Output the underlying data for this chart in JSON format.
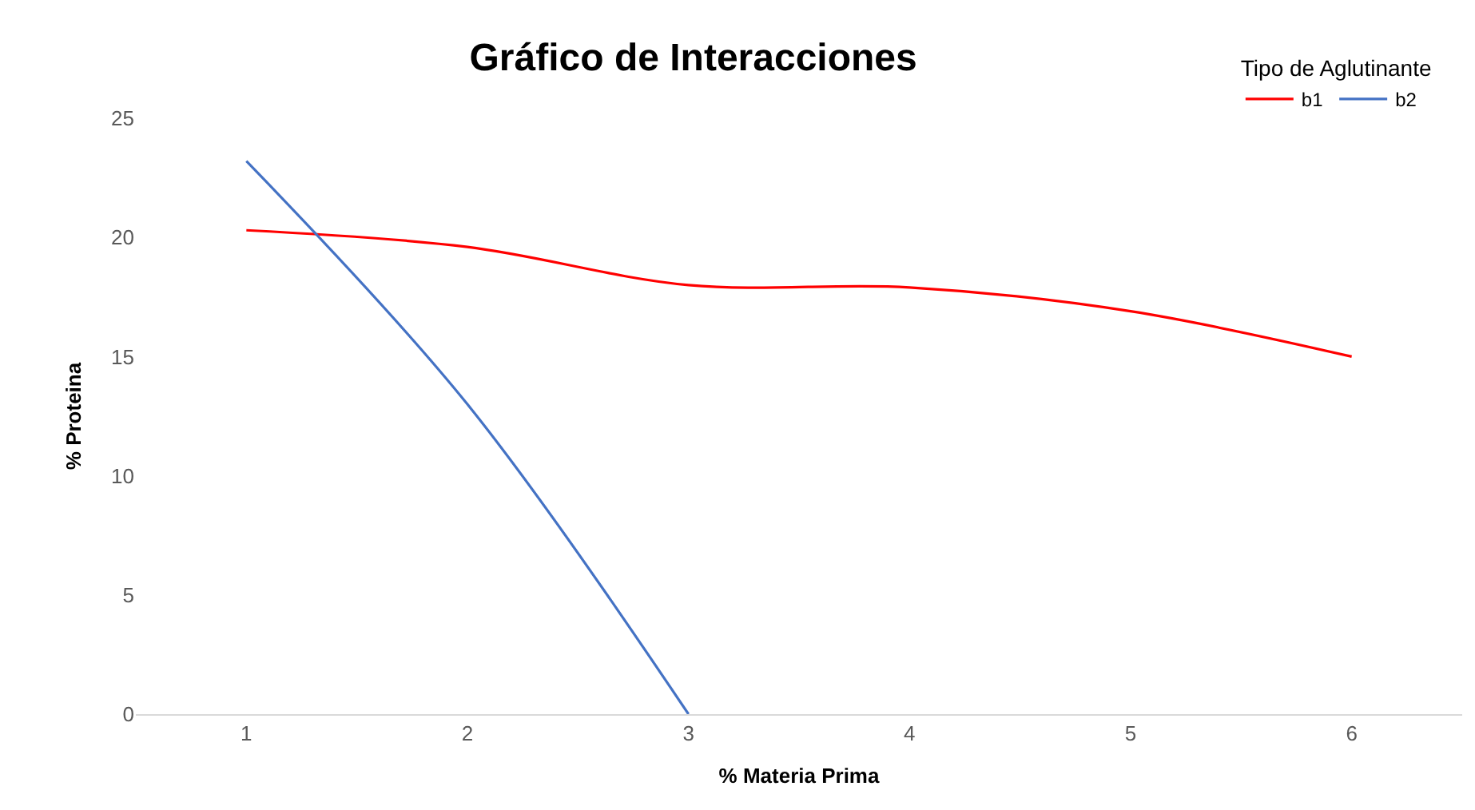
{
  "chart_data": {
    "type": "line",
    "title": "Gráfico de Interacciones",
    "xlabel": "% Materia Prima",
    "ylabel": "% Proteina",
    "legend_title": "Tipo de Aglutinante",
    "categories": [
      "1",
      "2",
      "3",
      "4",
      "5",
      "6"
    ],
    "series": [
      {
        "name": "b1",
        "color": "#ff0000",
        "values": [
          20.3,
          19.6,
          18.0,
          17.9,
          16.9,
          15.0
        ]
      },
      {
        "name": "b2",
        "color": "#4472c4",
        "values": [
          23.2,
          13.0,
          0.0,
          null,
          null,
          null
        ]
      }
    ],
    "ylim": [
      0,
      25
    ],
    "yticks": [
      0,
      5,
      10,
      15,
      20,
      25
    ],
    "legend": "top right"
  }
}
